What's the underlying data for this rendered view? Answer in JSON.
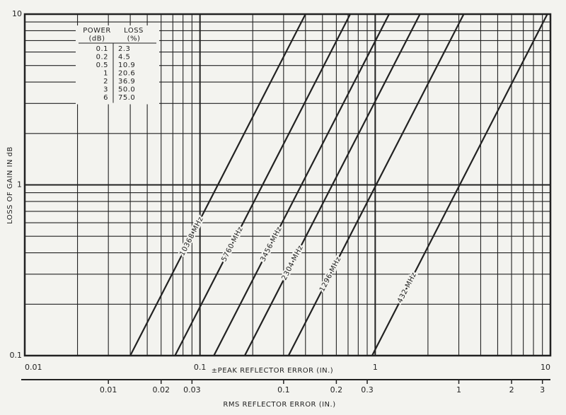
{
  "chart_data": {
    "type": "line",
    "ylabel": "LOSS OF GAIN IN dB",
    "xlabel": "±PEAK REFLECTOR ERROR (IN.)",
    "x2label": "RMS REFLECTOR ERROR (IN.)",
    "xscale": "log",
    "yscale": "log",
    "grid": true,
    "color": "#222222",
    "xlim": [
      0.01,
      10
    ],
    "ylim": [
      0.1,
      10
    ],
    "xticks": [
      0.01,
      0.1,
      1,
      10
    ],
    "yticks": [
      0.1,
      1,
      10
    ],
    "xminorticks": [
      0.02,
      0.03,
      0.04,
      0.05,
      0.06,
      0.07,
      0.08,
      0.09,
      0.2,
      0.3,
      0.4,
      0.5,
      0.6,
      0.7,
      0.8,
      0.9,
      2,
      3,
      4,
      5,
      6,
      7,
      8,
      9
    ],
    "yminorticks": [
      0.2,
      0.3,
      0.4,
      0.5,
      0.6,
      0.7,
      0.8,
      0.9,
      2,
      3,
      4,
      5,
      6,
      7,
      8,
      9
    ],
    "x2lim": [
      0.003333,
      3.333
    ],
    "x2ticks": [
      0.01,
      0.02,
      0.03,
      0.1,
      0.2,
      0.3,
      1,
      2,
      3
    ],
    "series": [
      {
        "name": "10368 MHz",
        "x": [
          0.04,
          0.4
        ],
        "values": [
          0.1,
          10
        ]
      },
      {
        "name": "5760 MHz",
        "x": [
          0.072,
          0.72
        ],
        "values": [
          0.1,
          10
        ]
      },
      {
        "name": "3456 MHz",
        "x": [
          0.12,
          1.2
        ],
        "values": [
          0.1,
          10
        ]
      },
      {
        "name": "2304 MHz",
        "x": [
          0.18,
          1.8
        ],
        "values": [
          0.1,
          10
        ]
      },
      {
        "name": "1296 MHz",
        "x": [
          0.32,
          3.2
        ],
        "values": [
          0.1,
          10
        ]
      },
      {
        "name": "432 MHz",
        "x": [
          0.96,
          9.6
        ],
        "values": [
          0.1,
          10
        ]
      }
    ],
    "table": {
      "header": [
        [
          "POWER",
          "LOSS"
        ],
        [
          "(dB)",
          "(%)"
        ]
      ],
      "rows": [
        [
          "0.1",
          "2.3"
        ],
        [
          "0.2",
          "4.5"
        ],
        [
          "0.5",
          "10.9"
        ],
        [
          "1",
          "20.6"
        ],
        [
          "2",
          "36.9"
        ],
        [
          "3",
          "50.0"
        ],
        [
          "6",
          "75.0"
        ]
      ]
    }
  }
}
